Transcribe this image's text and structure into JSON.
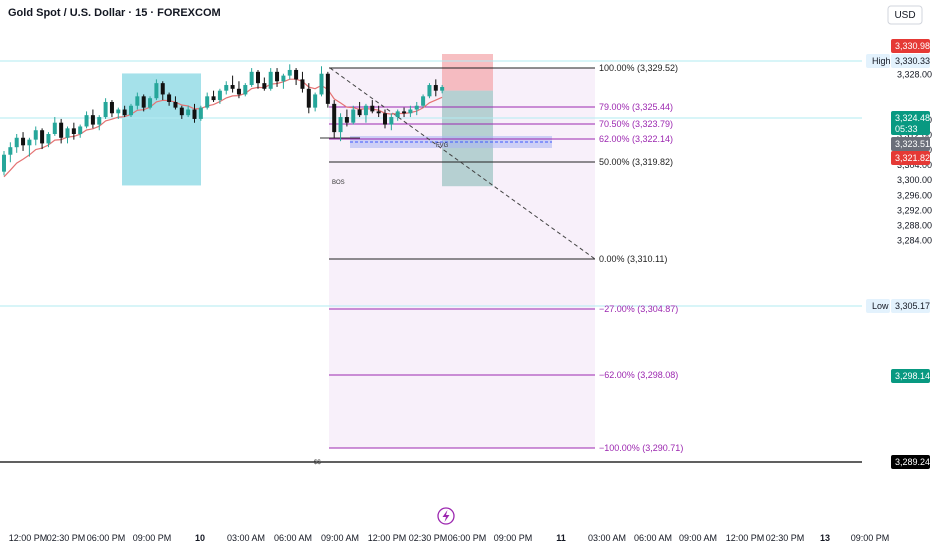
{
  "header": {
    "title": "Gold Spot / U.S. Dollar · 15 · FOREXCOM",
    "currency": "USD"
  },
  "colors": {
    "up": "#26a69a",
    "candle": "#111111",
    "ma": "#e57373",
    "fib_purple": "#9c27b0",
    "fib_black": "#222222",
    "box": "#5bc8d8",
    "short_red": "#f4a9ad",
    "short_teal": "#7fb6b0",
    "label_red": "#e53935",
    "label_green": "#089981",
    "label_gray": "#6b6f7a",
    "label_black": "#000000"
  },
  "chart_data": {
    "type": "candlestick",
    "symbol": "Gold Spot / U.S. Dollar",
    "interval": "15",
    "source": "FOREXCOM",
    "ylim": [
      3282.5,
      3335.0
    ],
    "y_ticks": [
      3284.0,
      3288.0,
      3292.0,
      3296.0,
      3300.0,
      3304.0,
      3308.0,
      3312.0,
      3316.0,
      3328.0
    ],
    "x_ticks": [
      "12:00 PM",
      "02:30 PM",
      "06:00 PM",
      "09:00 PM",
      "10",
      "03:00 AM",
      "06:00 AM",
      "09:00 AM",
      "12:00 PM",
      "02:30 PM",
      "06:00 PM",
      "09:00 PM",
      "11",
      "03:00 AM",
      "06:00 AM",
      "09:00 AM",
      "12:00 PM",
      "02:30 PM",
      "13",
      "09:00 PM"
    ],
    "candles": [
      [
        3302.0,
        3307.5,
        3301.0,
        3306.5
      ],
      [
        3306.5,
        3309.8,
        3304.5,
        3308.5
      ],
      [
        3308.5,
        3312.0,
        3307.0,
        3311.0
      ],
      [
        3311.0,
        3312.5,
        3307.5,
        3309.0
      ],
      [
        3309.0,
        3311.0,
        3306.0,
        3310.5
      ],
      [
        3310.5,
        3314.0,
        3309.0,
        3313.0
      ],
      [
        3313.0,
        3313.5,
        3308.0,
        3309.5
      ],
      [
        3309.5,
        3312.5,
        3308.5,
        3312.0
      ],
      [
        3312.0,
        3316.5,
        3311.5,
        3315.0
      ],
      [
        3315.0,
        3316.0,
        3309.5,
        3311.0
      ],
      [
        3311.0,
        3314.0,
        3309.5,
        3313.5
      ],
      [
        3313.5,
        3315.0,
        3310.5,
        3312.0
      ],
      [
        3312.0,
        3314.5,
        3311.0,
        3314.0
      ],
      [
        3314.0,
        3318.0,
        3313.5,
        3317.0
      ],
      [
        3317.0,
        3318.5,
        3313.5,
        3314.5
      ],
      [
        3314.5,
        3317.0,
        3313.0,
        3316.5
      ],
      [
        3316.5,
        3321.5,
        3316.0,
        3320.5
      ],
      [
        3320.5,
        3321.0,
        3316.5,
        3317.5
      ],
      [
        3317.5,
        3319.0,
        3316.0,
        3318.5
      ],
      [
        3318.5,
        3319.5,
        3316.5,
        3317.0
      ],
      [
        3317.0,
        3320.0,
        3316.5,
        3319.5
      ],
      [
        3319.5,
        3323.0,
        3318.5,
        3322.0
      ],
      [
        3322.0,
        3322.5,
        3318.0,
        3319.0
      ],
      [
        3319.0,
        3322.0,
        3318.5,
        3321.5
      ],
      [
        3321.5,
        3326.5,
        3321.0,
        3325.5
      ],
      [
        3325.5,
        3326.0,
        3321.0,
        3322.5
      ],
      [
        3322.5,
        3323.0,
        3319.5,
        3320.5
      ],
      [
        3320.5,
        3322.0,
        3318.5,
        3319.0
      ],
      [
        3319.0,
        3319.5,
        3316.0,
        3317.0
      ],
      [
        3317.0,
        3319.5,
        3316.5,
        3318.5
      ],
      [
        3318.5,
        3320.0,
        3315.0,
        3316.0
      ],
      [
        3316.0,
        3319.5,
        3315.5,
        3319.0
      ],
      [
        3319.0,
        3323.0,
        3318.5,
        3322.0
      ],
      [
        3322.0,
        3323.5,
        3320.5,
        3321.0
      ],
      [
        3321.0,
        3324.0,
        3320.0,
        3323.5
      ],
      [
        3323.5,
        3326.0,
        3322.5,
        3325.0
      ],
      [
        3325.0,
        3327.5,
        3323.0,
        3324.0
      ],
      [
        3324.0,
        3326.0,
        3321.5,
        3322.5
      ],
      [
        3322.5,
        3325.5,
        3322.0,
        3325.0
      ],
      [
        3325.0,
        3329.5,
        3324.5,
        3328.5
      ],
      [
        3328.5,
        3329.0,
        3324.0,
        3325.5
      ],
      [
        3325.5,
        3327.0,
        3323.5,
        3324.0
      ],
      [
        3324.0,
        3329.5,
        3323.5,
        3328.5
      ],
      [
        3328.5,
        3329.5,
        3324.5,
        3326.0
      ],
      [
        3326.0,
        3328.0,
        3324.0,
        3327.5
      ],
      [
        3327.5,
        3330.5,
        3326.5,
        3329.0
      ],
      [
        3329.0,
        3329.5,
        3325.0,
        3326.5
      ],
      [
        3326.5,
        3328.5,
        3323.0,
        3324.0
      ],
      [
        3324.0,
        3325.5,
        3317.5,
        3319.0
      ],
      [
        3319.0,
        3323.0,
        3318.0,
        3322.5
      ],
      [
        3322.5,
        3330.0,
        3322.0,
        3328.0
      ],
      [
        3328.0,
        3328.5,
        3319.0,
        3320.0
      ],
      [
        3320.0,
        3321.0,
        3311.0,
        3312.5
      ],
      [
        3312.5,
        3317.5,
        3310.1,
        3316.5
      ],
      [
        3316.5,
        3318.5,
        3314.0,
        3315.0
      ],
      [
        3315.0,
        3319.5,
        3314.5,
        3318.5
      ],
      [
        3318.5,
        3320.5,
        3316.5,
        3317.0
      ],
      [
        3317.0,
        3320.0,
        3315.0,
        3319.5
      ],
      [
        3319.5,
        3321.0,
        3317.5,
        3318.0
      ],
      [
        3318.0,
        3319.5,
        3316.5,
        3317.5
      ],
      [
        3317.5,
        3318.5,
        3313.5,
        3314.5
      ],
      [
        3314.5,
        3317.5,
        3313.0,
        3316.5
      ],
      [
        3316.5,
        3318.5,
        3315.5,
        3318.0
      ],
      [
        3318.0,
        3319.0,
        3316.5,
        3317.5
      ],
      [
        3317.5,
        3319.5,
        3316.5,
        3318.5
      ],
      [
        3318.5,
        3320.5,
        3317.0,
        3319.5
      ],
      [
        3319.5,
        3322.5,
        3319.0,
        3322.0
      ],
      [
        3322.0,
        3325.5,
        3321.5,
        3325.0
      ],
      [
        3325.0,
        3326.5,
        3322.0,
        3323.5
      ],
      [
        3323.5,
        3325.0,
        3322.8,
        3324.48
      ]
    ],
    "moving_average": {
      "start_value": 3299.0,
      "end_value": 3322.8
    },
    "fibonacci": [
      {
        "label": "100.00% (3,329.52)",
        "value": 3329.52
      },
      {
        "label": "79.00% (3,325.44)",
        "value": 3325.44
      },
      {
        "label": "70.50% (3,323.79)",
        "value": 3323.79
      },
      {
        "label": "62.00% (3,322.14)",
        "value": 3322.14
      },
      {
        "label": "50.00% (3,319.82)",
        "value": 3319.82
      },
      {
        "label": "0.00% (3,310.11)",
        "value": 3310.11
      },
      {
        "label": "−27.00% (3,304.87)",
        "value": 3304.87
      },
      {
        "label": "−62.00% (3,298.08)",
        "value": 3298.08
      },
      {
        "label": "−100.00% (3,290.71)",
        "value": 3290.71
      }
    ],
    "annotations": [
      {
        "text": "BOS"
      },
      {
        "text": "FVG"
      },
      {
        "text": "$$"
      }
    ],
    "price_labels": [
      {
        "text": "3,330.98",
        "value": 3330.98,
        "style": "red"
      },
      {
        "text": "3,330.33",
        "value": 3330.33,
        "style": "highlight",
        "tag": "High"
      },
      {
        "text": "3,324.48",
        "value": 3324.48,
        "style": "green",
        "sub": "05:33"
      },
      {
        "text": "3,323.51",
        "value": 3323.51,
        "style": "gray"
      },
      {
        "text": "3,321.82",
        "value": 3321.82,
        "style": "red"
      },
      {
        "text": "3,305.17",
        "value": 3305.17,
        "style": "highlight",
        "tag": "Low"
      },
      {
        "text": "3,298.14",
        "value": 3298.14,
        "style": "green"
      },
      {
        "text": "3,289.24",
        "value": 3289.24,
        "style": "black"
      }
    ],
    "reference_levels": [
      3330.33,
      3305.17,
      3289.24
    ],
    "short_position": {
      "stop": 3330.98,
      "entry": 3323.51,
      "target": 3298.14
    },
    "consolidation_box": {
      "top": 3322.5,
      "bottom": 3315.0
    },
    "fvg_zone": {
      "top": 3322.8,
      "bottom": 3321.5
    },
    "grid": false,
    "legend": "none"
  }
}
